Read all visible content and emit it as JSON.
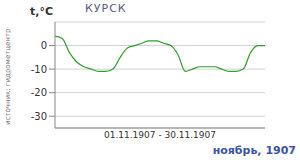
{
  "chart_data": {
    "type": "line",
    "title": "КУРСК",
    "subtitle": "ноябрь, 1907",
    "y_label": "t,°C",
    "x_label": "01.11.1907 - 30.11.1907",
    "source": "источник: гидрометцентр",
    "x": [
      1,
      2,
      3,
      4,
      5,
      6,
      7,
      8,
      9,
      10,
      11,
      12,
      13,
      14,
      15,
      16,
      17,
      18,
      19,
      20,
      21,
      22,
      23,
      24,
      25,
      26,
      27,
      28,
      29,
      30
    ],
    "values": [
      4,
      3,
      -3,
      -7,
      -9,
      -10,
      -11,
      -11,
      -10,
      -5,
      -1,
      0,
      1,
      2,
      2,
      1,
      0,
      -4,
      -11,
      -10,
      -9,
      -9,
      -9,
      -10,
      -11,
      -11,
      -10,
      -3,
      0,
      0
    ],
    "color": "#2e9e2e",
    "xlim": [
      1,
      30
    ],
    "ylim": [
      -35,
      10
    ],
    "yticks": [
      0,
      -10,
      -20,
      -30
    ],
    "grid": true,
    "tick_labels": "y"
  }
}
